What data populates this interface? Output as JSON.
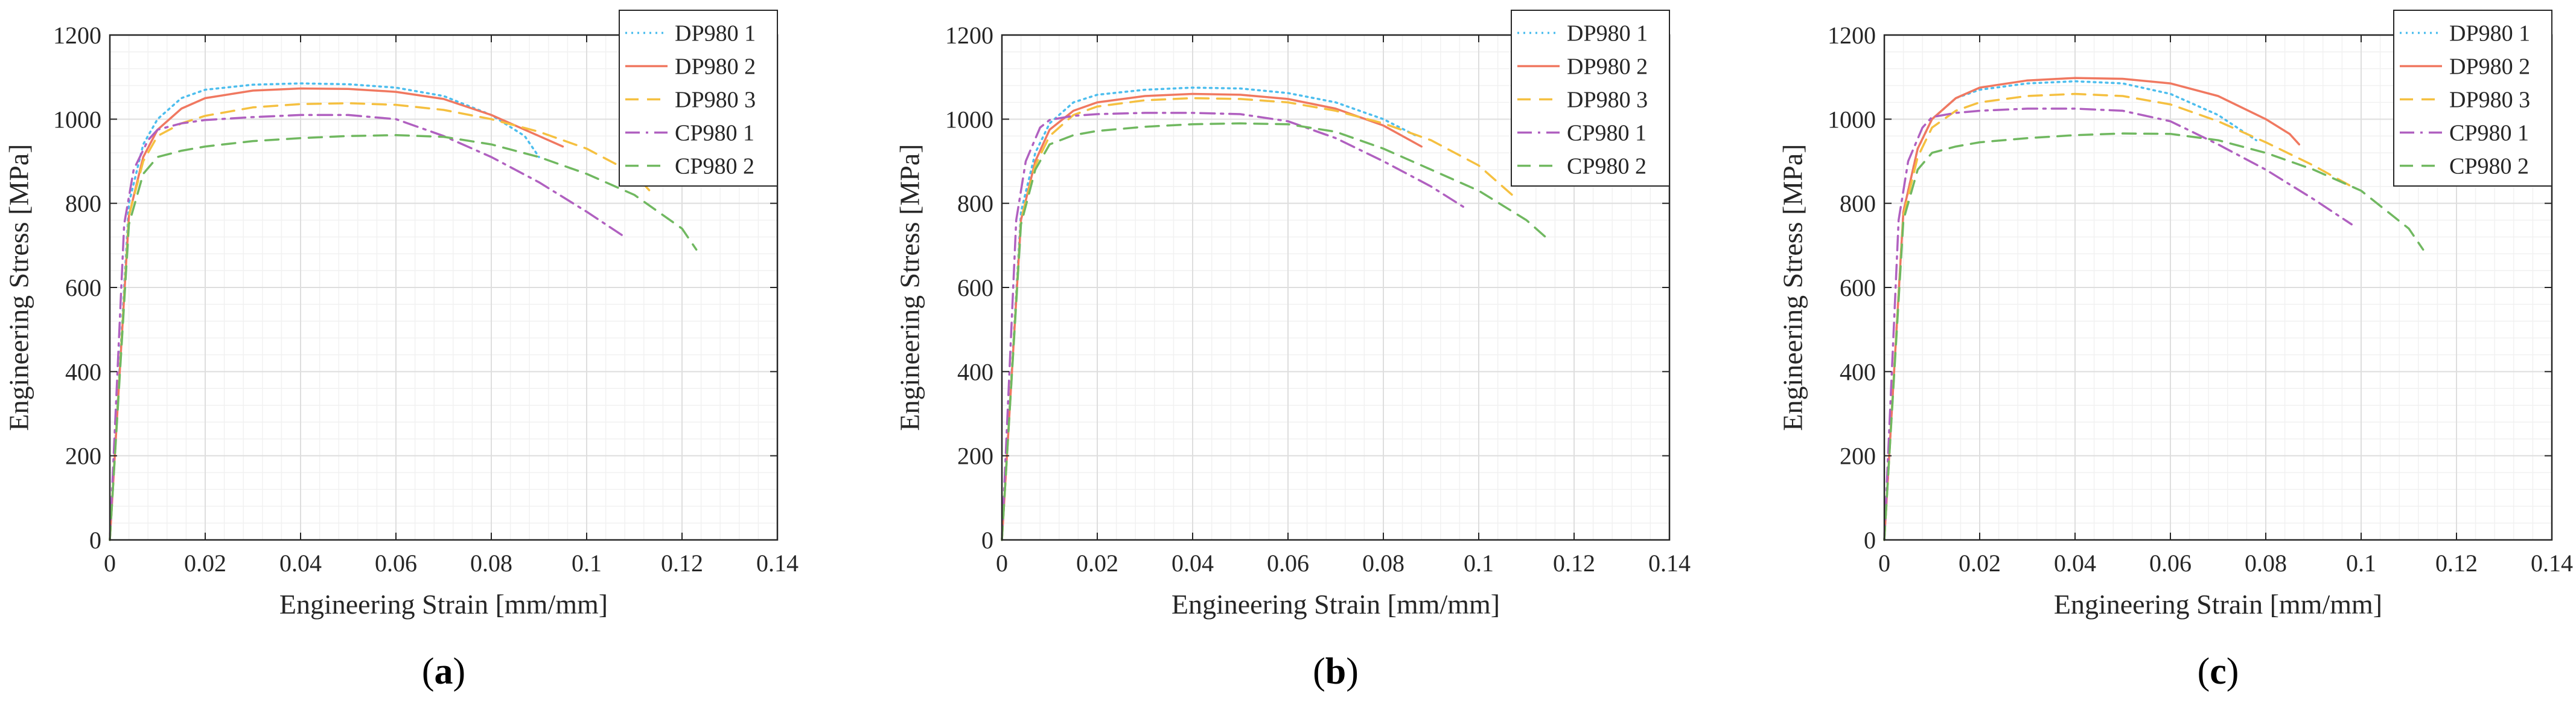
{
  "chart_data": [
    {
      "type": "line",
      "panel_label": "a",
      "caption_open": "(",
      "caption_close": ")",
      "xlabel": "Engineering Strain [mm/mm]",
      "ylabel": "Engineering Stress [MPa]",
      "xlim": [
        0,
        0.14
      ],
      "ylim": [
        0,
        1200
      ],
      "xticks": [
        0,
        0.02,
        0.04,
        0.06,
        0.08,
        0.1,
        0.12,
        0.14
      ],
      "xtick_labels": [
        "0",
        "0.02",
        "0.04",
        "0.06",
        "0.08",
        "0.1",
        "0.12",
        "0.14"
      ],
      "yticks": [
        0,
        200,
        400,
        600,
        800,
        1000,
        1200
      ],
      "ytick_labels": [
        "0",
        "200",
        "400",
        "600",
        "800",
        "1000",
        "1200"
      ],
      "grid": true,
      "legend_position": "top-right",
      "series": [
        {
          "name": "DP980 1",
          "color": "#4DBEEE",
          "dash": "dotted",
          "x": [
            0,
            0.004,
            0.007,
            0.01,
            0.015,
            0.02,
            0.03,
            0.04,
            0.05,
            0.06,
            0.07,
            0.08,
            0.087,
            0.09
          ],
          "y": [
            0,
            800,
            940,
            1000,
            1050,
            1070,
            1082,
            1085,
            1083,
            1075,
            1055,
            1010,
            960,
            910
          ]
        },
        {
          "name": "DP980 2",
          "color": "#F07860",
          "dash": "solid",
          "x": [
            0,
            0.004,
            0.007,
            0.01,
            0.015,
            0.02,
            0.03,
            0.04,
            0.05,
            0.06,
            0.07,
            0.08,
            0.09,
            0.095
          ],
          "y": [
            0,
            770,
            910,
            975,
            1025,
            1050,
            1068,
            1073,
            1072,
            1065,
            1048,
            1010,
            960,
            935
          ]
        },
        {
          "name": "DP980 3",
          "color": "#F5C040",
          "dash": "dashed",
          "x": [
            0,
            0.004,
            0.007,
            0.01,
            0.015,
            0.02,
            0.03,
            0.04,
            0.05,
            0.06,
            0.07,
            0.08,
            0.09,
            0.1,
            0.11,
            0.114
          ],
          "y": [
            0,
            770,
            900,
            960,
            990,
            1008,
            1028,
            1036,
            1038,
            1034,
            1022,
            1000,
            970,
            930,
            870,
            820
          ]
        },
        {
          "name": "CP980 1",
          "color": "#B060C0",
          "dash": "dashdot",
          "x": [
            0,
            0.003,
            0.005,
            0.008,
            0.01,
            0.015,
            0.02,
            0.03,
            0.04,
            0.05,
            0.06,
            0.07,
            0.08,
            0.09,
            0.1,
            0.108
          ],
          "y": [
            0,
            750,
            880,
            950,
            975,
            990,
            998,
            1005,
            1010,
            1010,
            1000,
            960,
            910,
            850,
            780,
            720
          ]
        },
        {
          "name": "CP980 2",
          "color": "#70B860",
          "dash": "dashed",
          "x": [
            0,
            0.004,
            0.007,
            0.01,
            0.015,
            0.02,
            0.03,
            0.04,
            0.05,
            0.06,
            0.07,
            0.08,
            0.09,
            0.1,
            0.11,
            0.12,
            0.123
          ],
          "y": [
            0,
            750,
            870,
            910,
            925,
            935,
            948,
            955,
            960,
            962,
            958,
            940,
            910,
            870,
            820,
            740,
            690
          ]
        }
      ]
    },
    {
      "type": "line",
      "panel_label": "b",
      "caption_open": "(",
      "caption_close": ")",
      "xlabel": "Engineering Strain [mm/mm]",
      "ylabel": "Engineering Stress [MPa]",
      "xlim": [
        0,
        0.14
      ],
      "ylim": [
        0,
        1200
      ],
      "xticks": [
        0,
        0.02,
        0.04,
        0.06,
        0.08,
        0.1,
        0.12,
        0.14
      ],
      "xtick_labels": [
        "0",
        "0.02",
        "0.04",
        "0.06",
        "0.08",
        "0.1",
        "0.12",
        "0.14"
      ],
      "yticks": [
        0,
        200,
        400,
        600,
        800,
        1000,
        1200
      ],
      "ytick_labels": [
        "0",
        "200",
        "400",
        "600",
        "800",
        "1000",
        "1200"
      ],
      "grid": true,
      "legend_position": "top-right",
      "series": [
        {
          "name": "DP980 1",
          "color": "#4DBEEE",
          "dash": "dotted",
          "x": [
            0,
            0.004,
            0.007,
            0.01,
            0.015,
            0.02,
            0.03,
            0.04,
            0.05,
            0.06,
            0.07,
            0.08,
            0.087
          ],
          "y": [
            0,
            780,
            920,
            990,
            1040,
            1058,
            1070,
            1075,
            1073,
            1062,
            1040,
            1000,
            960
          ]
        },
        {
          "name": "DP980 2",
          "color": "#F07860",
          "dash": "solid",
          "x": [
            0,
            0.004,
            0.007,
            0.01,
            0.015,
            0.02,
            0.03,
            0.04,
            0.05,
            0.06,
            0.07,
            0.08,
            0.088
          ],
          "y": [
            0,
            760,
            900,
            975,
            1020,
            1040,
            1055,
            1060,
            1058,
            1048,
            1025,
            985,
            935
          ]
        },
        {
          "name": "DP980 3",
          "color": "#F5C040",
          "dash": "dashed",
          "x": [
            0,
            0.004,
            0.007,
            0.01,
            0.015,
            0.02,
            0.03,
            0.04,
            0.05,
            0.06,
            0.07,
            0.08,
            0.09,
            0.1,
            0.107
          ],
          "y": [
            0,
            760,
            890,
            960,
            1010,
            1030,
            1045,
            1050,
            1048,
            1040,
            1020,
            990,
            950,
            890,
            820
          ]
        },
        {
          "name": "CP980 1",
          "color": "#B060C0",
          "dash": "dashdot",
          "x": [
            0,
            0.003,
            0.005,
            0.008,
            0.01,
            0.015,
            0.02,
            0.03,
            0.04,
            0.05,
            0.06,
            0.07,
            0.08,
            0.09,
            0.097
          ],
          "y": [
            0,
            760,
            900,
            980,
            998,
            1008,
            1012,
            1015,
            1015,
            1012,
            995,
            955,
            900,
            840,
            790
          ]
        },
        {
          "name": "CP980 2",
          "color": "#70B860",
          "dash": "dashed",
          "x": [
            0,
            0.004,
            0.007,
            0.01,
            0.015,
            0.02,
            0.03,
            0.04,
            0.05,
            0.06,
            0.07,
            0.08,
            0.09,
            0.1,
            0.11,
            0.114
          ],
          "y": [
            0,
            750,
            880,
            940,
            962,
            972,
            982,
            988,
            990,
            988,
            970,
            930,
            880,
            830,
            760,
            720
          ]
        }
      ]
    },
    {
      "type": "line",
      "panel_label": "c",
      "caption_open": "(",
      "caption_close": ")",
      "xlabel": "Engineering Strain [mm/mm]",
      "ylabel": "Engineering Stress [MPa]",
      "xlim": [
        0,
        0.14
      ],
      "ylim": [
        0,
        1200
      ],
      "xticks": [
        0,
        0.02,
        0.04,
        0.06,
        0.08,
        0.1,
        0.12,
        0.14
      ],
      "xtick_labels": [
        "0",
        "0.02",
        "0.04",
        "0.06",
        "0.08",
        "0.1",
        "0.12",
        "0.14"
      ],
      "yticks": [
        0,
        200,
        400,
        600,
        800,
        1000,
        1200
      ],
      "ytick_labels": [
        "0",
        "200",
        "400",
        "600",
        "800",
        "1000",
        "1200"
      ],
      "grid": true,
      "legend_position": "top-right",
      "series": [
        {
          "name": "DP980 1",
          "color": "#4DBEEE",
          "dash": "dotted",
          "x": [
            0,
            0.004,
            0.007,
            0.01,
            0.015,
            0.02,
            0.03,
            0.04,
            0.05,
            0.06,
            0.07,
            0.078
          ],
          "y": [
            0,
            780,
            930,
            1000,
            1050,
            1070,
            1085,
            1090,
            1085,
            1060,
            1010,
            950
          ]
        },
        {
          "name": "DP980 2",
          "color": "#F07860",
          "dash": "solid",
          "x": [
            0,
            0.004,
            0.007,
            0.01,
            0.015,
            0.02,
            0.03,
            0.04,
            0.05,
            0.06,
            0.07,
            0.08,
            0.085,
            0.087
          ],
          "y": [
            0,
            780,
            930,
            1000,
            1050,
            1075,
            1092,
            1098,
            1096,
            1085,
            1055,
            1000,
            965,
            940
          ]
        },
        {
          "name": "DP980 3",
          "color": "#F5C040",
          "dash": "dashed",
          "x": [
            0,
            0.004,
            0.007,
            0.01,
            0.015,
            0.02,
            0.03,
            0.04,
            0.05,
            0.06,
            0.07,
            0.08,
            0.09,
            0.098
          ],
          "y": [
            0,
            770,
            910,
            980,
            1020,
            1040,
            1055,
            1060,
            1055,
            1035,
            995,
            945,
            890,
            840
          ]
        },
        {
          "name": "CP980 1",
          "color": "#B060C0",
          "dash": "dashdot",
          "x": [
            0,
            0.003,
            0.005,
            0.008,
            0.01,
            0.015,
            0.02,
            0.03,
            0.04,
            0.05,
            0.06,
            0.07,
            0.08,
            0.09,
            0.098
          ],
          "y": [
            0,
            760,
            900,
            980,
            1005,
            1015,
            1020,
            1025,
            1025,
            1020,
            995,
            940,
            880,
            810,
            750
          ]
        },
        {
          "name": "CP980 2",
          "color": "#70B860",
          "dash": "dashed",
          "x": [
            0,
            0.004,
            0.007,
            0.01,
            0.015,
            0.02,
            0.03,
            0.04,
            0.05,
            0.06,
            0.07,
            0.08,
            0.09,
            0.1,
            0.11,
            0.113
          ],
          "y": [
            0,
            760,
            880,
            920,
            935,
            945,
            955,
            962,
            966,
            965,
            950,
            920,
            880,
            830,
            740,
            690
          ]
        }
      ]
    }
  ]
}
